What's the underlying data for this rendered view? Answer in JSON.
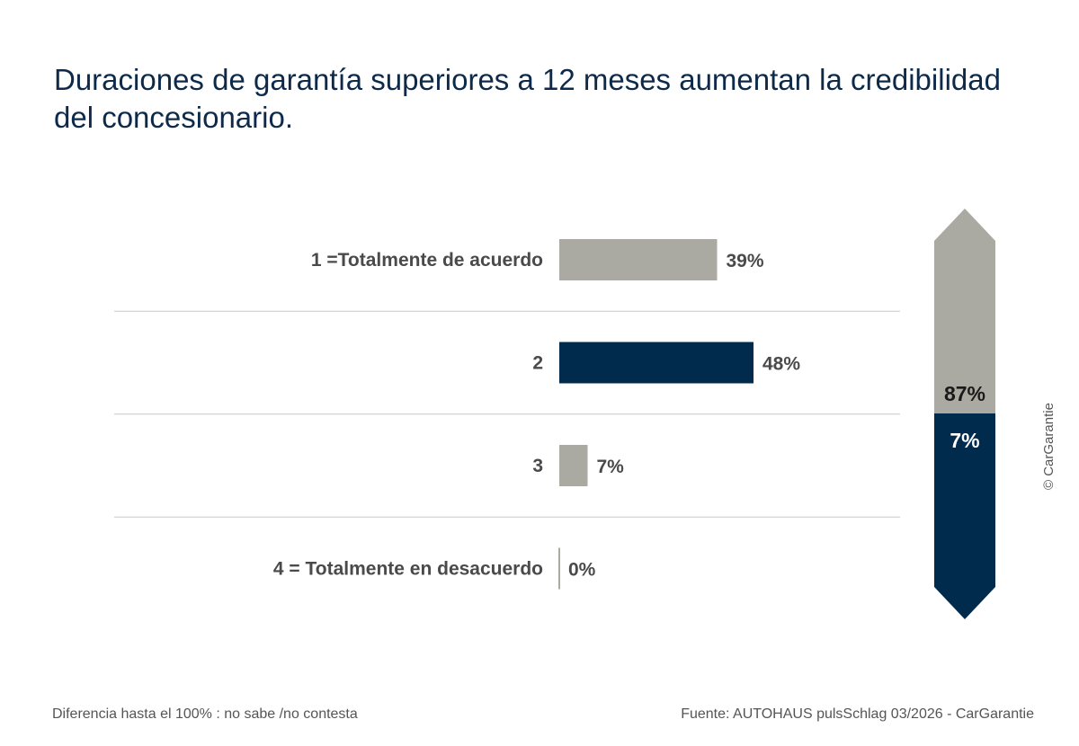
{
  "title": "Duraciones de garantía superiores a 12 meses aumentan la credibilidad del concesionario.",
  "colors": {
    "gray": "#abaaa2",
    "navy": "#002b4d",
    "text": "#4a4a4a",
    "title": "#0d2a4a",
    "divider": "#c8c8c8"
  },
  "chart_data": {
    "type": "bar",
    "orientation": "horizontal",
    "title": "Duraciones de garantía superiores a 12 meses aumentan la credibilidad del concesionario.",
    "xlabel": "",
    "ylabel": "",
    "xlim": [
      0,
      100
    ],
    "grid": false,
    "categories": [
      "1 =Totalmente de acuerdo",
      "2",
      "3",
      "4 = Totalmente en desacuerdo"
    ],
    "values": [
      39,
      48,
      7,
      0
    ],
    "value_labels": [
      "39%",
      "48%",
      "7%",
      "0%"
    ],
    "bar_colors": [
      "#abaaa2",
      "#002b4d",
      "#abaaa2",
      "#abaaa2"
    ],
    "summary": {
      "top": {
        "value": 87,
        "label": "87%",
        "color": "#abaaa2"
      },
      "bottom": {
        "value": 7,
        "label": "7%",
        "color": "#002b4d"
      }
    }
  },
  "footer": {
    "note": "Diferencia hasta el 100% : no sabe /no contesta",
    "source": "Fuente: AUTOHAUS pulsSchlag 03/2026 - CarGarantie"
  },
  "copyright": "© CarGarantie"
}
